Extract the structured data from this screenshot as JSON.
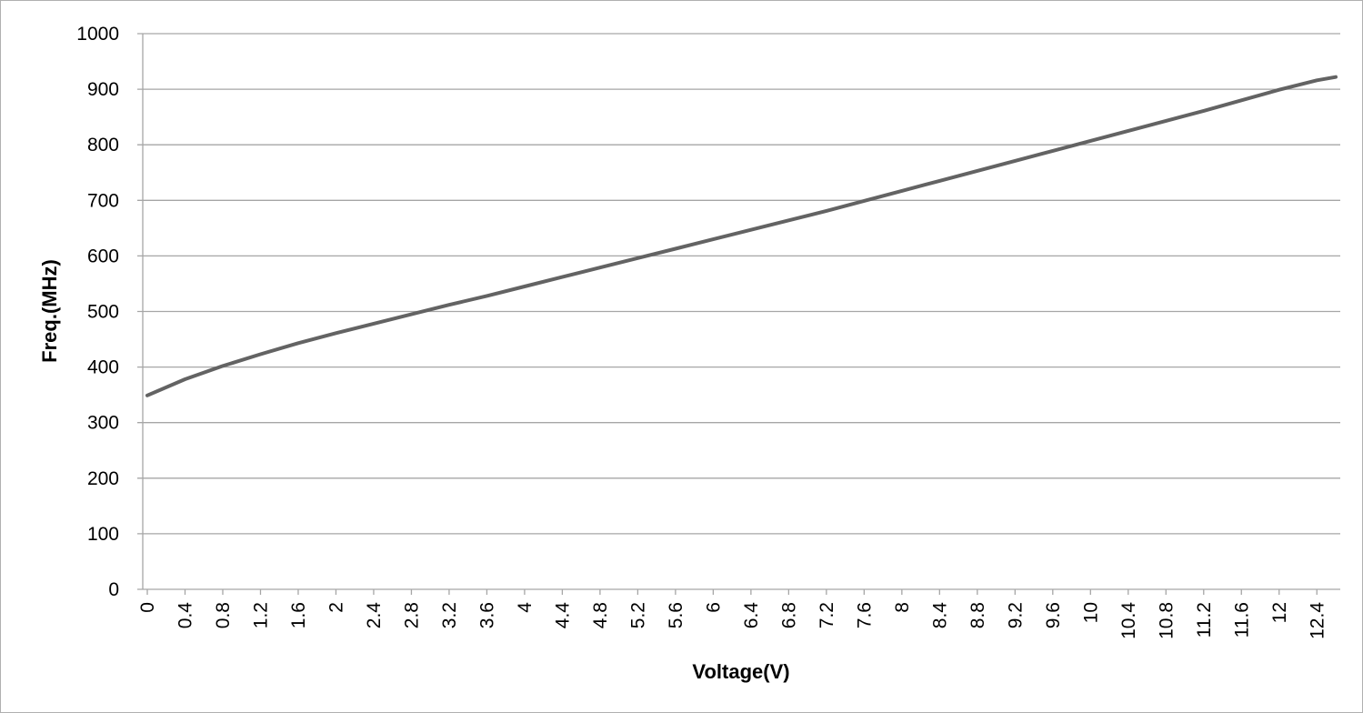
{
  "chart_data": {
    "type": "line",
    "title": "",
    "xlabel": "Voltage(V)",
    "ylabel": "Freq.(MHz)",
    "ylim": [
      0,
      1000
    ],
    "yticks": [
      0,
      100,
      200,
      300,
      400,
      500,
      600,
      700,
      800,
      900,
      1000
    ],
    "xlim": [
      0,
      12.6
    ],
    "xticks": [
      0,
      0.4,
      0.8,
      1.2,
      1.6,
      2,
      2.4,
      2.8,
      3.2,
      3.6,
      4,
      4.4,
      4.8,
      5.2,
      5.6,
      6,
      6.4,
      6.8,
      7.2,
      7.6,
      8,
      8.4,
      8.8,
      9.2,
      9.6,
      10,
      10.4,
      10.8,
      11.2,
      11.6,
      12,
      12.4
    ],
    "grid": "horizontal",
    "legend": "none",
    "line_color": "#636363",
    "grid_color": "#a6a6a6",
    "series": [
      {
        "x": [
          0,
          0.4,
          0.8,
          1.2,
          1.6,
          2,
          2.4,
          2.8,
          3.2,
          3.6,
          4,
          4.4,
          4.8,
          5.2,
          5.6,
          6,
          6.4,
          6.8,
          7.2,
          7.6,
          8,
          8.4,
          8.8,
          9.2,
          9.6,
          10,
          10.4,
          10.8,
          11.2,
          11.6,
          12,
          12.4,
          12.6
        ],
        "values": [
          349,
          378,
          402,
          423,
          443,
          461,
          478,
          495,
          512,
          528,
          545,
          562,
          579,
          596,
          613,
          630,
          647,
          664,
          681,
          699,
          717,
          735,
          753,
          771,
          789,
          807,
          825,
          843,
          861,
          880,
          899,
          916,
          922
        ]
      }
    ]
  }
}
